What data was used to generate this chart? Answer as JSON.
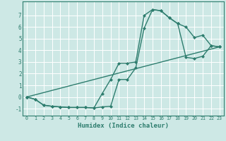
{
  "xlabel": "Humidex (Indice chaleur)",
  "background_color": "#cde8e5",
  "grid_color": "#ffffff",
  "line_color": "#2e7d6e",
  "markersize": 2.5,
  "linewidth": 1.0,
  "xlim": [
    -0.5,
    23.5
  ],
  "ylim": [
    -1.6,
    8.2
  ],
  "xticks": [
    0,
    1,
    2,
    3,
    4,
    5,
    6,
    7,
    8,
    9,
    10,
    11,
    12,
    13,
    14,
    15,
    16,
    17,
    18,
    19,
    20,
    21,
    22,
    23
  ],
  "yticks": [
    -1,
    0,
    1,
    2,
    3,
    4,
    5,
    6,
    7
  ],
  "line1_x": [
    0,
    1,
    2,
    3,
    4,
    5,
    6,
    7,
    8,
    9,
    10,
    11,
    12,
    13,
    14,
    15,
    16,
    17,
    18,
    19,
    20,
    21,
    22,
    23
  ],
  "line1_y": [
    0.0,
    -0.2,
    -0.7,
    -0.8,
    -0.85,
    -0.9,
    -0.9,
    -0.9,
    -0.95,
    0.3,
    1.5,
    2.9,
    2.9,
    3.0,
    7.0,
    7.5,
    7.4,
    6.8,
    6.3,
    6.0,
    5.1,
    5.3,
    4.4,
    4.3
  ],
  "line2_x": [
    0,
    1,
    2,
    3,
    4,
    5,
    6,
    7,
    8,
    9,
    10,
    11,
    12,
    13,
    14,
    15,
    16,
    17,
    18,
    19,
    20,
    21,
    22,
    23
  ],
  "line2_y": [
    0.0,
    -0.2,
    -0.7,
    -0.8,
    -0.85,
    -0.9,
    -0.9,
    -0.9,
    -0.95,
    -0.85,
    -0.8,
    1.5,
    1.5,
    2.5,
    5.9,
    7.5,
    7.4,
    6.8,
    6.3,
    3.4,
    3.3,
    3.5,
    4.4,
    4.3
  ],
  "line3_x": [
    0,
    23
  ],
  "line3_y": [
    0.0,
    4.3
  ]
}
